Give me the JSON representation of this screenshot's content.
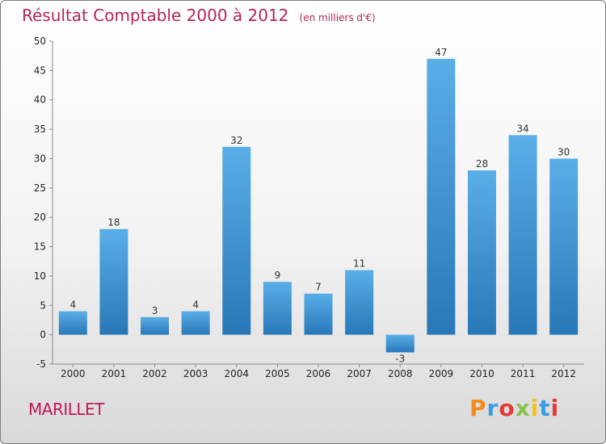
{
  "header": {
    "title": "Résultat Comptable 2000 à 2012",
    "subtitle": "(en milliers d'€)"
  },
  "footer": {
    "place": "MARILLET",
    "brand": "Proxiti"
  },
  "colors": {
    "title": "#b4235a",
    "bar_top": "#5aaee8",
    "bar_bottom": "#2878b8",
    "brand_letters": [
      "#f28c1a",
      "#3b9de0",
      "#e53935",
      "#8bc34a",
      "#f2c11a",
      "#3b9de0",
      "#e53935"
    ]
  },
  "chart_data": {
    "type": "bar",
    "title": "Résultat Comptable 2000 à 2012",
    "subtitle": "(en milliers d'€)",
    "categories": [
      "2000",
      "2001",
      "2002",
      "2003",
      "2004",
      "2005",
      "2006",
      "2007",
      "2008",
      "2009",
      "2010",
      "2011",
      "2012"
    ],
    "values": [
      4,
      18,
      3,
      4,
      32,
      9,
      7,
      11,
      -3,
      47,
      28,
      34,
      30
    ],
    "ylim": [
      -5,
      50
    ],
    "yticks": [
      -5,
      0,
      5,
      10,
      15,
      20,
      25,
      30,
      35,
      40,
      45,
      50
    ],
    "grid": false,
    "legend": "none"
  }
}
